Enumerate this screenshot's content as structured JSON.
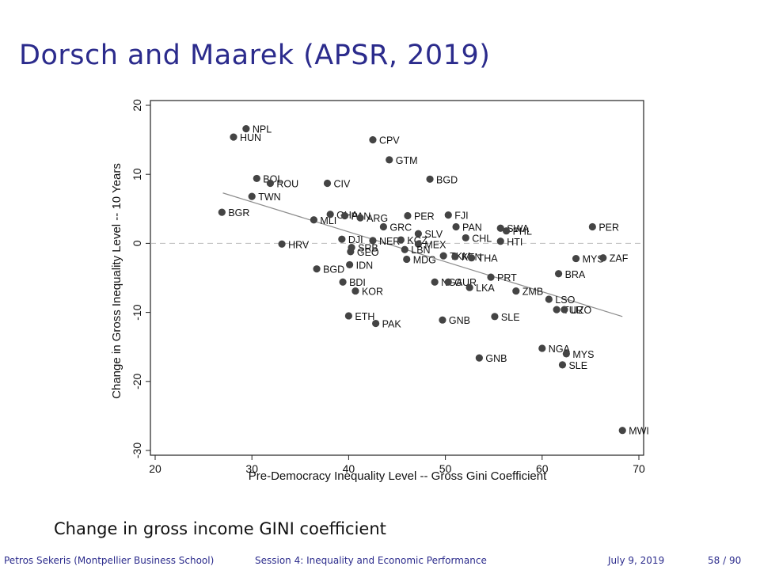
{
  "slide": {
    "title": "Dorsch and Maarek (APSR, 2019)",
    "caption": "Change in gross income GINI coefficient",
    "footer_author": "Petros Sekeris (Montpellier Business School)",
    "footer_session": "Session 4: Inequality and Economic Performance",
    "footer_date": "July 9, 2019",
    "footer_page": "58 / 90"
  },
  "colors": {
    "title": "#2b2b8c",
    "points": "#444444",
    "fit_line": "#8c8c8c",
    "zero_line": "#bbbbbb"
  },
  "chart_data": {
    "type": "scatter",
    "xlabel": "Pre-Democracy Inequality Level -- Gross Gini Coefficient",
    "ylabel": "Change in Gross Inequality Level -- 10 Years",
    "xlim": [
      20,
      70
    ],
    "ylim": [
      -30,
      20
    ],
    "xticks": [
      "20",
      "30",
      "40",
      "50",
      "60",
      "70"
    ],
    "yticks": [
      "-30",
      "-20",
      "-10",
      "0",
      "10",
      "20"
    ],
    "zero_line": true,
    "fit_line": [
      [
        27,
        7.3
      ],
      [
        68.3,
        -10.6
      ]
    ],
    "points": [
      {
        "label": "NPL",
        "x": 29.4,
        "y": 16.6
      },
      {
        "label": "HUN",
        "x": 28.1,
        "y": 15.4
      },
      {
        "label": "CPV",
        "x": 42.5,
        "y": 15.0
      },
      {
        "label": "GTM",
        "x": 44.2,
        "y": 12.1
      },
      {
        "label": "BGD",
        "x": 48.4,
        "y": 9.3
      },
      {
        "label": "BOL",
        "x": 30.5,
        "y": 9.4
      },
      {
        "label": "ROU",
        "x": 31.9,
        "y": 8.7
      },
      {
        "label": "CIV",
        "x": 37.8,
        "y": 8.7
      },
      {
        "label": "TWN",
        "x": 30.0,
        "y": 6.8
      },
      {
        "label": "BGR",
        "x": 26.9,
        "y": 4.5
      },
      {
        "label": "MLI",
        "x": 36.4,
        "y": 3.4
      },
      {
        "label": "GHA",
        "x": 38.1,
        "y": 4.2
      },
      {
        "label": "PAN",
        "x": 39.6,
        "y": 4.0
      },
      {
        "label": "ARG",
        "x": 41.2,
        "y": 3.7
      },
      {
        "label": "PER",
        "x": 46.1,
        "y": 4.0
      },
      {
        "label": "FJI",
        "x": 50.3,
        "y": 4.1
      },
      {
        "label": "GRC",
        "x": 43.6,
        "y": 2.4
      },
      {
        "label": "SLV",
        "x": 47.2,
        "y": 1.4
      },
      {
        "label": "PAN",
        "x": 51.1,
        "y": 2.4
      },
      {
        "label": "CHL",
        "x": 52.1,
        "y": 0.8
      },
      {
        "label": "SWA",
        "x": 55.7,
        "y": 2.2
      },
      {
        "label": "PHL",
        "x": 56.3,
        "y": 1.8
      },
      {
        "label": "HTI",
        "x": 55.7,
        "y": 0.3
      },
      {
        "label": "PER",
        "x": 65.2,
        "y": 2.4
      },
      {
        "label": "HRV",
        "x": 33.1,
        "y": -0.1
      },
      {
        "label": "DJI",
        "x": 39.3,
        "y": 0.6
      },
      {
        "label": "NER",
        "x": 42.5,
        "y": 0.4
      },
      {
        "label": "KGZ",
        "x": 45.4,
        "y": 0.5
      },
      {
        "label": "MEX",
        "x": 47.2,
        "y": -0.1
      },
      {
        "label": "SRB",
        "x": 40.3,
        "y": -0.6
      },
      {
        "label": "GEO",
        "x": 40.2,
        "y": -1.2
      },
      {
        "label": "LBN",
        "x": 45.8,
        "y": -0.9
      },
      {
        "label": "TKM",
        "x": 49.8,
        "y": -1.8
      },
      {
        "label": "KEN",
        "x": 51.0,
        "y": -1.9
      },
      {
        "label": "THA",
        "x": 52.7,
        "y": -2.1
      },
      {
        "label": "MDG",
        "x": 46.0,
        "y": -2.3
      },
      {
        "label": "MYS",
        "x": 63.5,
        "y": -2.2
      },
      {
        "label": "ZAF",
        "x": 66.3,
        "y": -2.1
      },
      {
        "label": "IDN",
        "x": 40.1,
        "y": -3.1
      },
      {
        "label": "BGD",
        "x": 36.7,
        "y": -3.7
      },
      {
        "label": "BRA",
        "x": 61.7,
        "y": -4.4
      },
      {
        "label": "BDI",
        "x": 39.4,
        "y": -5.6
      },
      {
        "label": "PRT",
        "x": 54.7,
        "y": -4.9
      },
      {
        "label": "NGA",
        "x": 48.9,
        "y": -5.6
      },
      {
        "label": "GUR",
        "x": 50.3,
        "y": -5.6
      },
      {
        "label": "LKA",
        "x": 52.5,
        "y": -6.4
      },
      {
        "label": "KOR",
        "x": 40.7,
        "y": -6.9
      },
      {
        "label": "ZMB",
        "x": 57.3,
        "y": -6.9
      },
      {
        "label": "LSO",
        "x": 60.7,
        "y": -8.1
      },
      {
        "label": "TUR",
        "x": 61.5,
        "y": -9.6
      },
      {
        "label": "UZO",
        "x": 62.3,
        "y": -9.6
      },
      {
        "label": "ETH",
        "x": 40.0,
        "y": -10.5
      },
      {
        "label": "PAK",
        "x": 42.8,
        "y": -11.6
      },
      {
        "label": "GNB",
        "x": 49.7,
        "y": -11.1
      },
      {
        "label": "SLE",
        "x": 55.1,
        "y": -10.6
      },
      {
        "label": "NGA",
        "x": 60.0,
        "y": -15.2
      },
      {
        "label": "MYS",
        "x": 62.5,
        "y": -16.0
      },
      {
        "label": "SLE",
        "x": 62.1,
        "y": -17.6
      },
      {
        "label": "GNB",
        "x": 53.5,
        "y": -16.6
      },
      {
        "label": "MWI",
        "x": 68.3,
        "y": -27.1
      }
    ]
  }
}
